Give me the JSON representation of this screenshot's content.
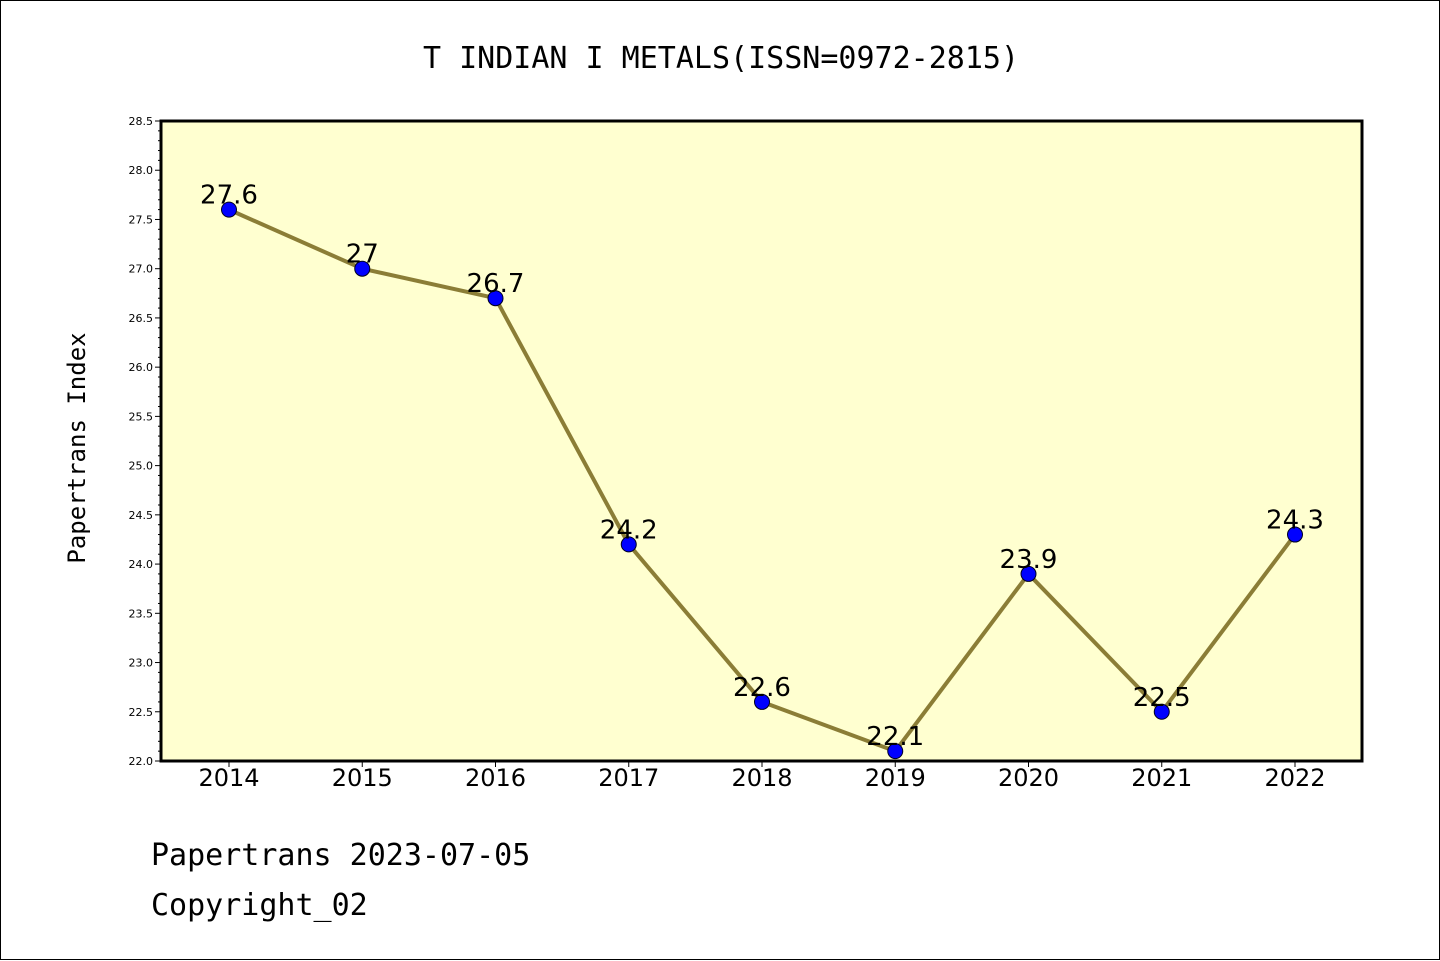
{
  "footer": {
    "line1": "Papertrans 2023-07-05",
    "line2": "Copyright_02"
  },
  "colors": {
    "plot_background": "#ffffd0",
    "line": "#8b7d36",
    "marker": "#0000ff",
    "axis": "#000000"
  },
  "chart_data": {
    "type": "line",
    "title": "T INDIAN I METALS(ISSN=0972-2815)",
    "ylabel": "Papertrans Index",
    "xlabel": "",
    "categories": [
      "2014",
      "2015",
      "2016",
      "2017",
      "2018",
      "2019",
      "2020",
      "2021",
      "2022"
    ],
    "series": [
      {
        "values": [
          27.6,
          27,
          26.7,
          24.2,
          22.6,
          22.1,
          23.9,
          22.5,
          24.3
        ],
        "labels": [
          "27.6",
          "27",
          "26.7",
          "24.2",
          "22.6",
          "22.1",
          "23.9",
          "22.5",
          "24.3"
        ]
      }
    ],
    "ylim": [
      22.0,
      28.5
    ],
    "yticks": [
      "22.0",
      "22.5",
      "23.0",
      "23.5",
      "24.0",
      "24.5",
      "25.0",
      "25.5",
      "26.0",
      "26.5",
      "27.0",
      "27.5",
      "28.0",
      "28.5"
    ],
    "grid": false,
    "legend": "none"
  }
}
